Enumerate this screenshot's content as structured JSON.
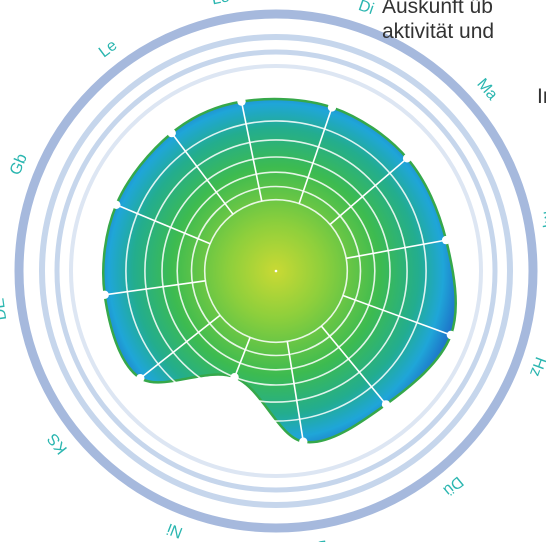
{
  "side_text": {
    "line1": "Auskunft üb",
    "line2": "aktivität und",
    "line3": "In"
  },
  "colors": {
    "ring_outer": "#a6b9dd",
    "ring_inner": "#c6d6ec",
    "grid": "#ffffff",
    "fill_center": "#8dcf3c",
    "fill_mid": "#27ad6a",
    "fill_edge": "#1fa6d8",
    "fill_deep": "#1e63c4",
    "outline": "#36a84a",
    "label": "#2bb6b0"
  },
  "chart_data": {
    "type": "radar",
    "title": "",
    "axes": [
      "Le",
      "Di",
      "Ma",
      "Mp",
      "Hz",
      "Dü",
      "Bl",
      "Ni",
      "KS",
      "DE",
      "Gb",
      "Le"
    ],
    "values": [
      0.91,
      0.91,
      0.91,
      0.91,
      0.98,
      0.91,
      0.91,
      0.6,
      0.91,
      0.91,
      0.91,
      0.91
    ],
    "range": [
      0,
      1
    ],
    "rings": 6
  }
}
